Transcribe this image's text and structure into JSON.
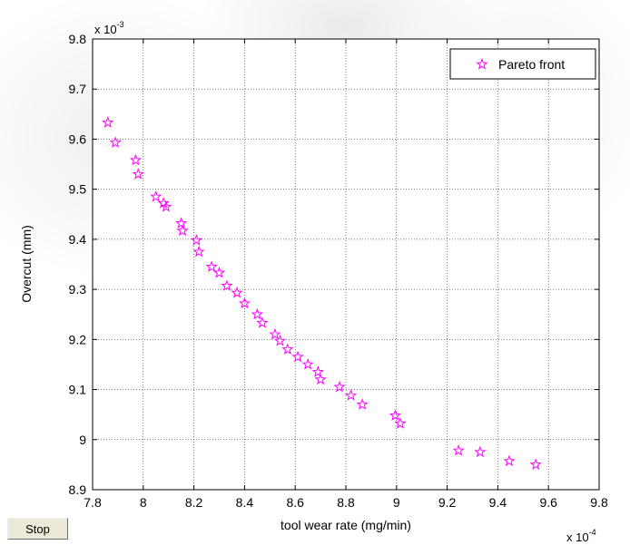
{
  "stop_button": {
    "label": "Stop"
  },
  "chart_data": {
    "type": "scatter",
    "xlabel": "tool wear rate (mg/min)",
    "ylabel": "Overcut (mm)",
    "x_exponent_label": "x 10",
    "x_exponent_power": "-4",
    "y_exponent_label": "x 10",
    "y_exponent_power": "-3",
    "xlim": [
      7.8,
      9.8
    ],
    "ylim": [
      8.9,
      9.8
    ],
    "x_ticks": [
      "7.8",
      "8",
      "8.2",
      "8.4",
      "8.6",
      "8.8",
      "9",
      "9.2",
      "9.4",
      "9.6",
      "9.8"
    ],
    "y_ticks": [
      "8.9",
      "9",
      "9.1",
      "9.2",
      "9.3",
      "9.4",
      "9.5",
      "9.6",
      "9.7",
      "9.8"
    ],
    "grid": true,
    "legend_position": "top-right",
    "marker_color": "#ff00ff",
    "series": [
      {
        "name": "Pareto front",
        "x": [
          7.86,
          7.89,
          7.97,
          7.98,
          8.05,
          8.08,
          8.09,
          8.15,
          8.155,
          8.21,
          8.22,
          8.27,
          8.3,
          8.33,
          8.37,
          8.4,
          8.45,
          8.47,
          8.52,
          8.54,
          8.57,
          8.61,
          8.65,
          8.69,
          8.7,
          8.775,
          8.82,
          8.865,
          8.995,
          9.015,
          9.245,
          9.33,
          9.445,
          9.55
        ],
        "y": [
          9.633,
          9.593,
          9.558,
          9.53,
          9.485,
          9.472,
          9.465,
          9.432,
          9.417,
          9.398,
          9.375,
          9.345,
          9.333,
          9.307,
          9.293,
          9.272,
          9.25,
          9.233,
          9.21,
          9.197,
          9.18,
          9.165,
          9.15,
          9.135,
          9.12,
          9.105,
          9.088,
          9.07,
          9.048,
          9.032,
          8.978,
          8.975,
          8.957,
          8.95
        ]
      }
    ]
  }
}
